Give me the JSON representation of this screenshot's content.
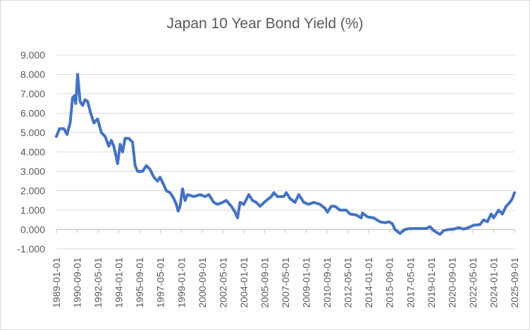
{
  "chart_data": {
    "type": "line",
    "title": "Japan 10 Year Bond Yield (%)",
    "xlabel": "",
    "ylabel": "",
    "ylim": [
      -1,
      9
    ],
    "yticks": [
      "-1.000",
      "0.000",
      "1.000",
      "2.000",
      "3.000",
      "4.000",
      "5.000",
      "6.000",
      "7.000",
      "8.000",
      "9.000"
    ],
    "xticks": [
      "1989-01-01",
      "1990-09-01",
      "1992-05-01",
      "1994-01-01",
      "1995-09-01",
      "1997-05-01",
      "1999-01-01",
      "2000-09-01",
      "2002-05-01",
      "2004-01-01",
      "2005-09-01",
      "2007-05-01",
      "2009-01-01",
      "2010-09-01",
      "2012-05-01",
      "2014-01-01",
      "2015-09-01",
      "2017-05-01",
      "2019-01-01",
      "2020-09-01",
      "2022-05-01",
      "2024-01-01",
      "2025-09-01"
    ],
    "xlim_decimal_year": [
      1989.0,
      2025.67
    ],
    "grid": true,
    "color": "#4472C4",
    "series": [
      {
        "name": "Japan 10 Year Bond Yield",
        "x": [
          1989.0,
          1989.25,
          1989.6,
          1989.85,
          1990.1,
          1990.3,
          1990.45,
          1990.55,
          1990.7,
          1990.9,
          1991.1,
          1991.3,
          1991.5,
          1991.75,
          1992.0,
          1992.3,
          1992.6,
          1992.9,
          1993.2,
          1993.4,
          1993.6,
          1993.9,
          1994.1,
          1994.3,
          1994.5,
          1994.8,
          1995.1,
          1995.3,
          1995.5,
          1995.7,
          1995.9,
          1996.2,
          1996.5,
          1996.8,
          1997.1,
          1997.3,
          1997.6,
          1997.8,
          1998.1,
          1998.4,
          1998.6,
          1998.75,
          1998.9,
          1999.1,
          1999.3,
          1999.5,
          2000.0,
          2000.5,
          2000.9,
          2001.2,
          2001.6,
          2001.9,
          2002.3,
          2002.6,
          2003.0,
          2003.3,
          2003.5,
          2003.7,
          2004.0,
          2004.4,
          2004.7,
          2005.0,
          2005.3,
          2005.8,
          2006.2,
          2006.4,
          2006.7,
          2007.2,
          2007.4,
          2007.7,
          2008.1,
          2008.4,
          2008.8,
          2009.2,
          2009.6,
          2010.1,
          2010.5,
          2010.7,
          2011.0,
          2011.3,
          2011.7,
          2012.2,
          2012.5,
          2013.0,
          2013.4,
          2013.5,
          2013.9,
          2014.4,
          2014.9,
          2015.3,
          2015.6,
          2015.9,
          2016.1,
          2016.5,
          2016.9,
          2017.3,
          2017.7,
          2018.2,
          2018.6,
          2018.9,
          2019.2,
          2019.7,
          2020.0,
          2020.4,
          2020.8,
          2021.2,
          2021.6,
          2022.0,
          2022.4,
          2022.9,
          2023.2,
          2023.5,
          2023.8,
          2024.0,
          2024.4,
          2024.7,
          2025.0,
          2025.3,
          2025.5,
          2025.67
        ],
        "values": [
          4.8,
          5.2,
          5.2,
          4.9,
          5.5,
          6.8,
          6.9,
          6.5,
          8.0,
          6.6,
          6.4,
          6.7,
          6.6,
          6.0,
          5.5,
          5.7,
          5.0,
          4.8,
          4.3,
          4.6,
          4.3,
          3.4,
          4.4,
          4.0,
          4.7,
          4.7,
          4.5,
          3.3,
          3.0,
          3.0,
          3.0,
          3.3,
          3.1,
          2.7,
          2.5,
          2.7,
          2.3,
          2.0,
          1.9,
          1.6,
          1.3,
          0.95,
          1.2,
          2.1,
          1.5,
          1.8,
          1.7,
          1.8,
          1.7,
          1.8,
          1.4,
          1.3,
          1.4,
          1.5,
          1.2,
          0.9,
          0.6,
          1.4,
          1.3,
          1.8,
          1.5,
          1.4,
          1.2,
          1.5,
          1.7,
          1.9,
          1.7,
          1.7,
          1.9,
          1.6,
          1.4,
          1.8,
          1.4,
          1.3,
          1.4,
          1.3,
          1.1,
          0.9,
          1.2,
          1.2,
          1.0,
          1.0,
          0.8,
          0.75,
          0.6,
          0.85,
          0.65,
          0.6,
          0.4,
          0.35,
          0.4,
          0.3,
          0.0,
          -0.2,
          0.0,
          0.05,
          0.05,
          0.05,
          0.05,
          0.15,
          -0.05,
          -0.25,
          -0.05,
          0.0,
          0.02,
          0.1,
          0.02,
          0.1,
          0.22,
          0.25,
          0.5,
          0.4,
          0.8,
          0.6,
          1.0,
          0.8,
          1.2,
          1.4,
          1.6,
          1.9
        ]
      }
    ]
  }
}
